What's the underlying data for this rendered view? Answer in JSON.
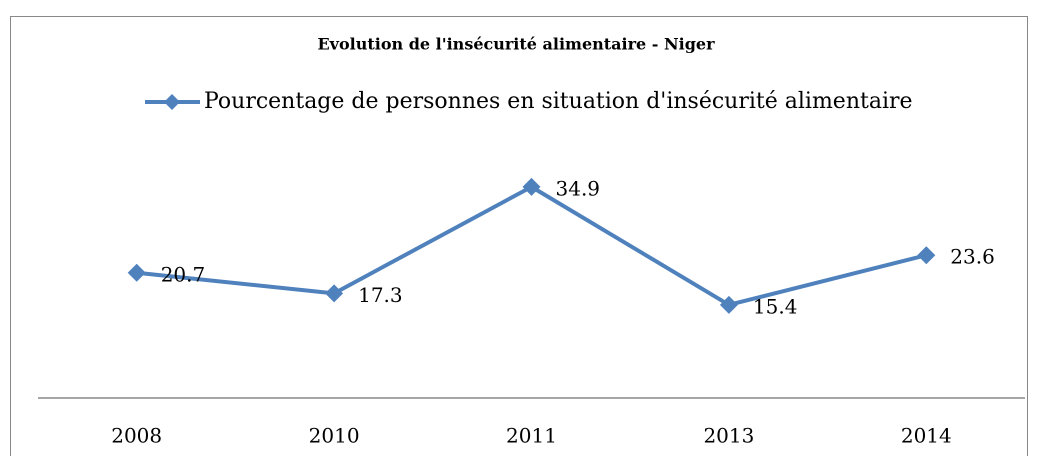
{
  "chart_data": {
    "type": "line",
    "title": "Evolution de l'insécurité alimentaire - Niger",
    "categories": [
      "2008",
      "2010",
      "2011",
      "2013",
      "2014"
    ],
    "series": [
      {
        "name": "Pourcentage de personnes en situation d'insécurité alimentaire",
        "color": "#4f81bd",
        "values": [
          20.7,
          17.3,
          34.9,
          15.4,
          23.6
        ]
      }
    ],
    "ylim": [
      0,
      40
    ]
  }
}
